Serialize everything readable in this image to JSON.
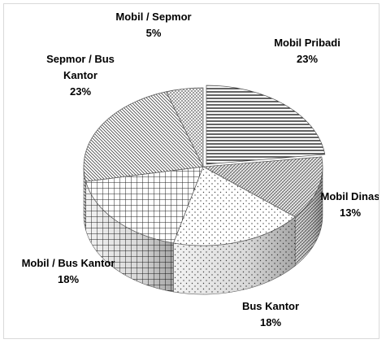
{
  "chart_data": {
    "type": "pie",
    "style": "3d-exploded-patterned",
    "slices": [
      {
        "label": "Mobil Pribadi",
        "value": 23,
        "value_label": "23%",
        "pattern": "horizontal-lines"
      },
      {
        "label": "Mobil Dinas",
        "value": 13,
        "value_label": "13%",
        "pattern": "diagonal-dense"
      },
      {
        "label": "Bus Kantor",
        "value": 18,
        "value_label": "18%",
        "pattern": "dots"
      },
      {
        "label": "Mobil / Bus Kantor",
        "value": 18,
        "value_label": "18%",
        "pattern": "grid"
      },
      {
        "label": "Sepmor / Bus Kantor",
        "value": 23,
        "value_label": "23%",
        "pattern": "diagonal-hatch"
      },
      {
        "label": "Mobil / Sepmor",
        "value": 5,
        "value_label": "5%",
        "pattern": "crosshatch-fine"
      }
    ],
    "label_lines": [
      [
        "Mobil Pribadi",
        "23%"
      ],
      [
        "Mobil Dinas",
        "13%"
      ],
      [
        "Bus Kantor",
        "18%"
      ],
      [
        "Mobil / Bus Kantor",
        "18%"
      ],
      [
        "Sepmor / Bus",
        "Kantor",
        "23%"
      ],
      [
        "Mobil / Sepmor",
        "5%"
      ]
    ],
    "title": "",
    "legend": "none"
  }
}
